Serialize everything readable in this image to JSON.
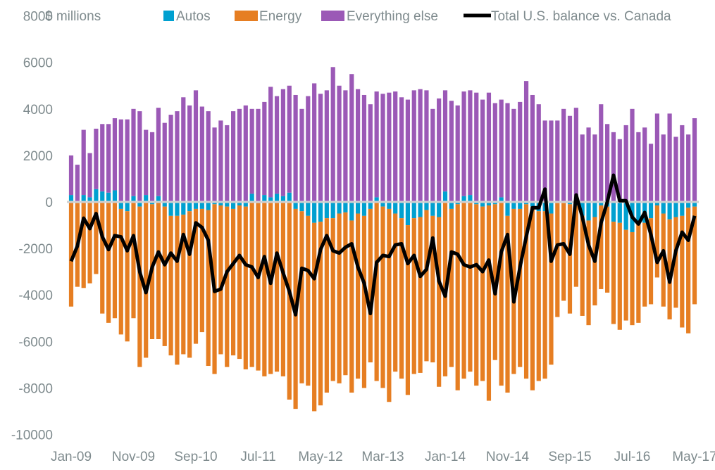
{
  "chart_data": {
    "type": "bar",
    "stacked": true,
    "title": "",
    "ylabel": "$ millions",
    "xlabel": "",
    "ylim": [
      -10000,
      8000
    ],
    "yticks": [
      8000,
      6000,
      4000,
      2000,
      0,
      -2000,
      -4000,
      -6000,
      -8000,
      -10000
    ],
    "x_tick_labels": [
      "Jan-09",
      "Nov-09",
      "Sep-10",
      "Jul-11",
      "May-12",
      "Mar-13",
      "Jan-14",
      "Nov-14",
      "Sep-15",
      "Jul-16",
      "May-17"
    ],
    "x_tick_every_months": 10,
    "start_month": "Jan-09",
    "end_month": "May-17",
    "grid": false,
    "legend_position": "top",
    "colors": {
      "autos": "#00a0d0",
      "energy": "#e67e22",
      "everything_else": "#9b59b6",
      "total": "#000000",
      "zero_line": "#d0d0d0"
    },
    "series": [
      {
        "name": "Autos",
        "kind": "bar",
        "values": [
          300,
          -50,
          300,
          200,
          550,
          450,
          400,
          500,
          -300,
          -400,
          250,
          -200,
          300,
          -100,
          250,
          -200,
          -600,
          -600,
          -550,
          -400,
          -300,
          -300,
          -350,
          -100,
          -150,
          -200,
          -300,
          -150,
          -200,
          350,
          -50,
          300,
          200,
          350,
          250,
          400,
          -300,
          -400,
          -600,
          -900,
          -850,
          -700,
          -700,
          -500,
          -450,
          -800,
          -500,
          -600,
          -300,
          200,
          -200,
          -300,
          -500,
          -700,
          -1000,
          -700,
          -650,
          -350,
          -600,
          -650,
          450,
          -300,
          -100,
          250,
          300,
          -100,
          -200,
          -150,
          -100,
          200,
          -600,
          -300,
          -300,
          -100,
          -200,
          -400,
          -400,
          -500,
          -50,
          -50,
          -100,
          -150,
          -600,
          -800,
          -650,
          -150,
          -200,
          -850,
          -900,
          -1200,
          -1300,
          -900,
          -900,
          -700,
          -150,
          -500,
          -750,
          -650,
          -600,
          -250,
          -200
        ],
        "note": "approximate values read from chart"
      },
      {
        "name": "Energy",
        "kind": "bar",
        "values": [
          -4500,
          -3600,
          -3700,
          -3500,
          -3100,
          -4800,
          -5200,
          -5000,
          -5400,
          -5600,
          -5000,
          -6900,
          -6700,
          -5800,
          -5900,
          -6000,
          -6000,
          -6400,
          -6000,
          -6300,
          -5800,
          -5300,
          -6700,
          -7300,
          -6400,
          -6900,
          -6300,
          -6600,
          -7000,
          -7100,
          -7200,
          -7500,
          -7400,
          -7300,
          -7500,
          -8500,
          -8600,
          -7400,
          -7300,
          -8100,
          -7900,
          -7500,
          -7000,
          -7300,
          -7000,
          -7400,
          -7100,
          -7400,
          -6600,
          -7700,
          -7800,
          -8300,
          -6800,
          -6900,
          -7300,
          -6700,
          -6700,
          -6500,
          -6300,
          -7300,
          -7500,
          -6800,
          -8000,
          -7600,
          -7300,
          -7800,
          -7500,
          -8400,
          -6700,
          -7900,
          -7600,
          -7100,
          -6800,
          -7500,
          -7900,
          -7300,
          -7200,
          -6500,
          -4900,
          -4200,
          -4700,
          -3500,
          -4300,
          -4500,
          -3800,
          -3600,
          -3700,
          -4400,
          -4600,
          -3900,
          -4000,
          -4300,
          -3600,
          -3700,
          -3100,
          -4000,
          -4300,
          -3900,
          -4800,
          -5400,
          -4200
        ],
        "note": "approximate values read from chart"
      },
      {
        "name": "Everything else",
        "kind": "bar",
        "values": [
          1700,
          1600,
          2800,
          1900,
          2600,
          2900,
          2950,
          3100,
          3550,
          3550,
          3750,
          3900,
          2800,
          3000,
          3800,
          3400,
          3750,
          3900,
          4500,
          4150,
          4800,
          4100,
          3900,
          3200,
          3500,
          3300,
          3900,
          4000,
          4150,
          3650,
          4000,
          4000,
          4750,
          4200,
          4600,
          4600,
          4600,
          4000,
          4550,
          5100,
          4650,
          4800,
          5800,
          5000,
          4800,
          5500,
          4850,
          4600,
          4200,
          4550,
          4650,
          4700,
          4750,
          4500,
          4400,
          4800,
          4850,
          4800,
          4000,
          4450,
          4350,
          4350,
          4150,
          4500,
          4500,
          4700,
          4400,
          4700,
          4250,
          4200,
          4250,
          4000,
          4300,
          5200,
          4600,
          4200,
          3500,
          3500,
          3500,
          4000,
          3700,
          4050,
          2900,
          3200,
          2900,
          4200,
          3350,
          3000,
          2700,
          3300,
          4000,
          3000,
          3200,
          2500,
          3800,
          2900,
          3800,
          2800,
          3300,
          2900,
          3600
        ],
        "note": "approximate values read from chart"
      },
      {
        "name": "Total U.S. balance vs. Canada",
        "kind": "line",
        "values": [
          -2550,
          -1900,
          -700,
          -1150,
          -500,
          -1500,
          -2050,
          -1450,
          -1500,
          -2100,
          -1450,
          -3000,
          -3900,
          -2800,
          -2150,
          -2700,
          -2200,
          -2550,
          -1400,
          -2250,
          -900,
          -1100,
          -1650,
          -3850,
          -3750,
          -3000,
          -2650,
          -2300,
          -2700,
          -2800,
          -3250,
          -2350,
          -3500,
          -2200,
          -3050,
          -3850,
          -4850,
          -2850,
          -2950,
          -3300,
          -2050,
          -1450,
          -2100,
          -2200,
          -1950,
          -1800,
          -2800,
          -3500,
          -4800,
          -2600,
          -2300,
          -2350,
          -1850,
          -1800,
          -2650,
          -2300,
          -3200,
          -2900,
          -1550,
          -3400,
          -4050,
          -2150,
          -2250,
          -2700,
          -2800,
          -2700,
          -3000,
          -2500,
          -3950,
          -2150,
          -1400,
          -4300,
          -2800,
          -1500,
          -250,
          -250,
          550,
          -2550,
          -1850,
          -1800,
          -2250,
          300,
          -650,
          -1850,
          -2550,
          -900,
          0,
          1150,
          50,
          50,
          -650,
          -950,
          -450,
          -1400,
          -2600,
          -2100,
          -3450,
          -2100,
          -1300,
          -1650,
          -600
        ],
        "note": "approximate values read from chart"
      }
    ]
  },
  "legend": {
    "axis_unit_label": "$ millions",
    "items": [
      {
        "label": "Autos",
        "type": "swatch"
      },
      {
        "label": "Energy",
        "type": "swatch"
      },
      {
        "label": "Everything else",
        "type": "swatch"
      },
      {
        "label": "Total U.S. balance vs. Canada",
        "type": "line"
      }
    ]
  }
}
